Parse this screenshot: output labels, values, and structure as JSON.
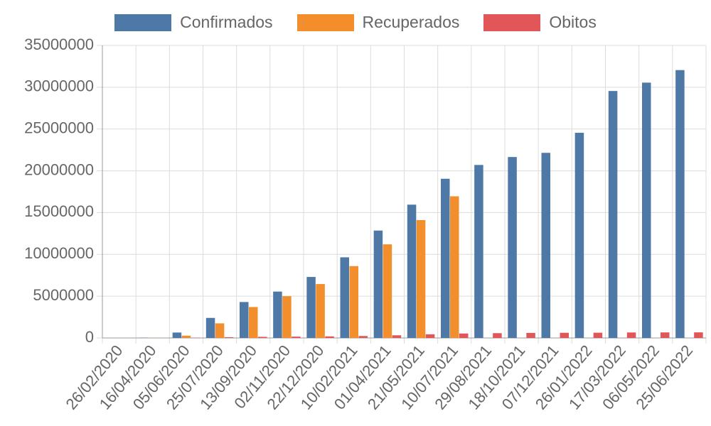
{
  "chart_data": {
    "type": "bar",
    "categories": [
      "26/02/2020",
      "16/04/2020",
      "05/06/2020",
      "25/07/2020",
      "13/09/2020",
      "02/11/2020",
      "22/12/2020",
      "10/02/2021",
      "01/04/2021",
      "21/05/2021",
      "10/07/2021",
      "29/08/2021",
      "18/10/2021",
      "07/12/2021",
      "26/01/2022",
      "17/03/2022",
      "06/05/2022",
      "25/06/2022"
    ],
    "series": [
      {
        "name": "Confirmados",
        "color": "#4e79a7",
        "values": [
          1,
          30000,
          650000,
          2400000,
          4300000,
          5550000,
          7300000,
          9650000,
          12850000,
          15950000,
          19050000,
          20700000,
          21650000,
          22150000,
          24550000,
          29550000,
          30550000,
          32050000
        ]
      },
      {
        "name": "Recuperados",
        "color": "#f28e2b",
        "values": [
          0,
          15000,
          270000,
          1750000,
          3700000,
          5000000,
          6450000,
          8600000,
          11200000,
          14100000,
          16950000,
          0,
          0,
          0,
          0,
          0,
          0,
          0
        ]
      },
      {
        "name": "Obitos",
        "color": "#e15759",
        "values": [
          0,
          2000,
          35000,
          90000,
          135000,
          162000,
          190000,
          235000,
          320000,
          440000,
          533000,
          575000,
          603000,
          616000,
          626000,
          656000,
          664000,
          670000
        ]
      }
    ],
    "yticks": [
      "35000000",
      "30000000",
      "25000000",
      "20000000",
      "15000000",
      "10000000",
      "5000000",
      "0"
    ],
    "ylim": [
      0,
      35000000
    ],
    "grid": true,
    "legend": "top"
  }
}
